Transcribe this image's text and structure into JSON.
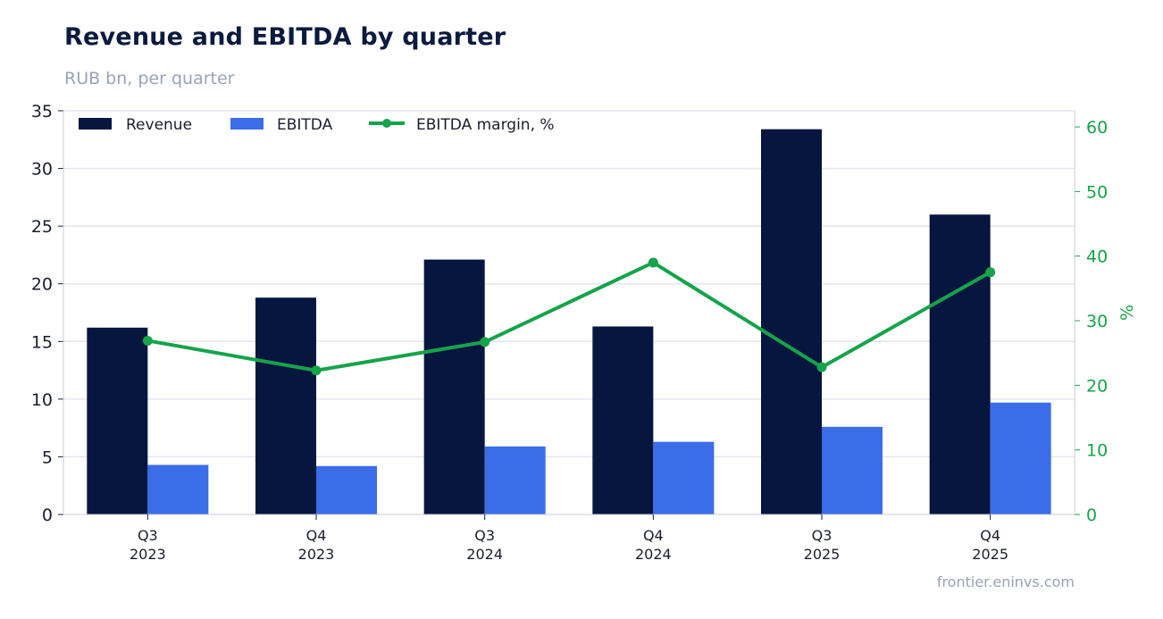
{
  "header": {
    "title": "Revenue and EBITDA by quarter",
    "subtitle": "RUB bn, per quarter"
  },
  "footer": {
    "source": "frontier.eninvs.com"
  },
  "colors": {
    "revenue": "#06163f",
    "ebitda": "#3b6de8",
    "margin": "#16a34a",
    "grid": "#e3e6f0",
    "axis": "#c9cedc"
  },
  "chart_data": {
    "type": "bar",
    "categories": [
      [
        "Q3",
        "2023"
      ],
      [
        "Q4",
        "2023"
      ],
      [
        "Q3",
        "2024"
      ],
      [
        "Q4",
        "2024"
      ],
      [
        "Q3",
        "2025"
      ],
      [
        "Q4",
        "2025"
      ]
    ],
    "series": [
      {
        "name": "Revenue",
        "type": "bar",
        "axis": "left",
        "values": [
          16.2,
          18.8,
          22.1,
          16.3,
          33.4,
          26.0
        ]
      },
      {
        "name": "EBITDA",
        "type": "bar",
        "axis": "left",
        "values": [
          4.3,
          4.2,
          5.9,
          6.3,
          7.6,
          9.7
        ]
      },
      {
        "name": "EBITDA margin, %",
        "type": "line",
        "axis": "right",
        "values": [
          26.9,
          22.3,
          26.7,
          39.0,
          22.8,
          37.5
        ]
      }
    ],
    "ylim": [
      0,
      35
    ],
    "yticks": [
      0,
      5,
      10,
      15,
      20,
      25,
      30,
      35
    ],
    "y2lim": [
      0,
      62.5
    ],
    "y2ticks": [
      0,
      10,
      20,
      30,
      40,
      50,
      60
    ],
    "ylabel": "",
    "y2label": "%",
    "legend": "top-left",
    "grid": true
  }
}
